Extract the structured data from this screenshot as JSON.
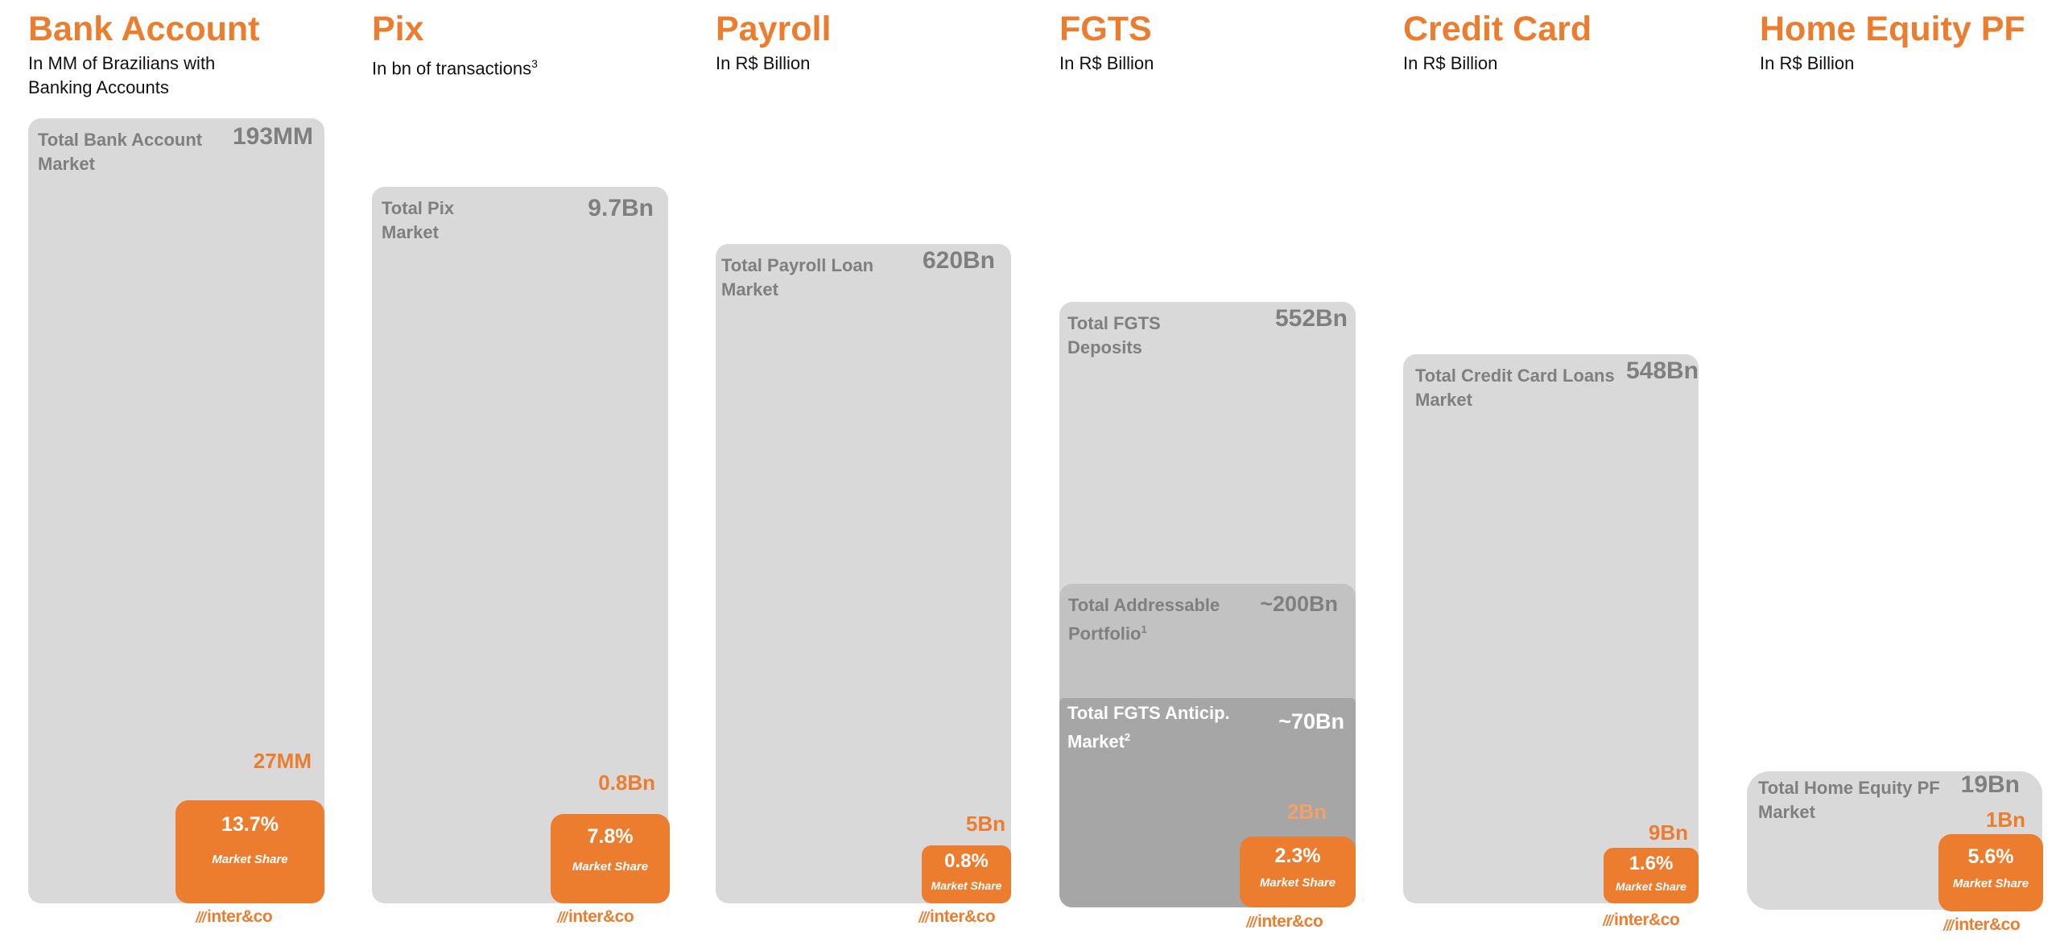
{
  "colors": {
    "accent": "#ec7d2f",
    "bar_total": "#d9d9d9",
    "bar_addressable": "#c2c2c2",
    "bar_anticipation": "#a6a6a6",
    "label_gray": "#7f7f7f"
  },
  "brand": {
    "logo_text": "inter&co"
  },
  "chart_data": [
    {
      "type": "bar",
      "title": "Bank Account",
      "subtitle_line1": "In MM of Brazilians with",
      "subtitle_line2": "Banking Accounts",
      "total_label": "Total Bank Account Market",
      "total_value": 193,
      "total_display": "193MM",
      "inter_value": 27,
      "inter_display": "27MM",
      "market_share": "13.7%",
      "share_label": "Market Share"
    },
    {
      "type": "bar",
      "title": "Pix",
      "subtitle": "In bn of transactions",
      "subtitle_sup": "3",
      "total_label": "Total Pix Market",
      "total_value": 9.7,
      "total_display": "9.7Bn",
      "inter_value": 0.8,
      "inter_display": "0.8Bn",
      "market_share": "7.8%",
      "share_label": "Market Share"
    },
    {
      "type": "bar",
      "title": "Payroll",
      "subtitle": "In R$ Billion",
      "total_label": "Total Payroll Loan Market",
      "total_value": 620,
      "total_display": "620Bn",
      "inter_value": 5,
      "inter_display": "5Bn",
      "market_share": "0.8%",
      "share_label": "Market Share"
    },
    {
      "type": "bar",
      "title": "FGTS",
      "subtitle": "In R$ Billion",
      "total_label": "Total FGTS Deposits",
      "total_value": 552,
      "total_display": "552Bn",
      "addressable_label": "Total  Addressable Portfolio",
      "addressable_sup": "1",
      "addressable_value": 200,
      "addressable_display": "~200Bn",
      "anticipation_label": "Total  FGTS Anticip. Market",
      "anticipation_sup": "2",
      "anticipation_value": 70,
      "anticipation_display": "~70Bn",
      "inter_value": 2,
      "inter_display": "2Bn",
      "market_share": "2.3%",
      "share_label": "Market Share"
    },
    {
      "type": "bar",
      "title": "Credit Card",
      "subtitle": "In R$ Billion",
      "total_label": "Total Credit Card  Loans Market",
      "total_value": 548,
      "total_display": "548Bn",
      "inter_value": 9,
      "inter_display": "9Bn",
      "market_share": "1.6%",
      "share_label": "Market Share"
    },
    {
      "type": "bar",
      "title": "Home Equity PF",
      "subtitle": "In R$ Billion",
      "total_label": "Total Home Equity PF Market",
      "total_value": 19,
      "total_display": "19Bn",
      "inter_value": 1,
      "inter_display": "1Bn",
      "market_share": "5.6%",
      "share_label": "Market Share"
    }
  ]
}
